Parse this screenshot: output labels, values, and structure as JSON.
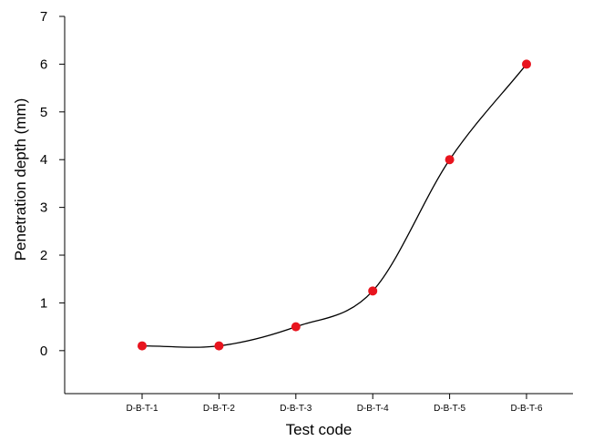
{
  "chart_data": {
    "type": "line",
    "categories": [
      "D-B-T-1",
      "D-B-T-2",
      "D-B-T-3",
      "D-B-T-4",
      "D-B-T-5",
      "D-B-T-6"
    ],
    "series": [
      {
        "values": [
          0.1,
          0.1,
          0.5,
          1.25,
          4.0,
          6.0
        ]
      }
    ],
    "xlabel": "Test code",
    "ylabel": "Penetration depth (mm)",
    "ylim": [
      -0.9,
      7
    ],
    "yticks": [
      0,
      1,
      2,
      3,
      4,
      5,
      6,
      7
    ],
    "grid": false,
    "legend": "none",
    "line_style": "smooth",
    "colors": {
      "line": "#000000",
      "marker": "#e8141e",
      "axis": "#000000"
    }
  }
}
